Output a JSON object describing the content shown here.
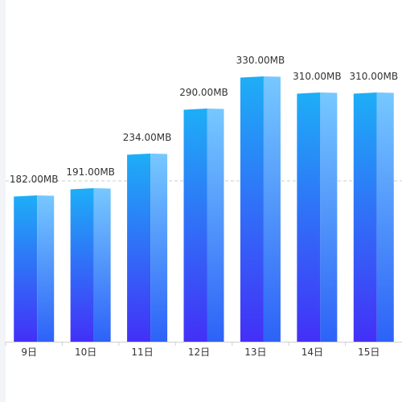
{
  "chart_data": {
    "type": "bar",
    "categories": [
      "9日",
      "10日",
      "11日",
      "12日",
      "13日",
      "14日",
      "15日"
    ],
    "values": [
      182,
      191,
      234,
      290,
      330,
      310,
      310
    ],
    "value_labels": [
      "182.00MB",
      "191.00MB",
      "234.00MB",
      "290.00MB",
      "330.00MB",
      "310.00MB",
      "310.00MB"
    ],
    "unit": "MB",
    "title": "",
    "xlabel": "",
    "ylabel": "",
    "ylim": [
      0,
      400
    ],
    "reference_line": 200,
    "grid": false,
    "legend": "none",
    "style": "3d-bar"
  },
  "colors": {
    "front_top": "#1eaef7",
    "front_bottom": "#4330f7",
    "side_top": "#76c8ff",
    "side_bottom": "#2d62f7",
    "axis": "#d0d0d0",
    "reference_line": "#cccccc",
    "label": "#333333"
  }
}
